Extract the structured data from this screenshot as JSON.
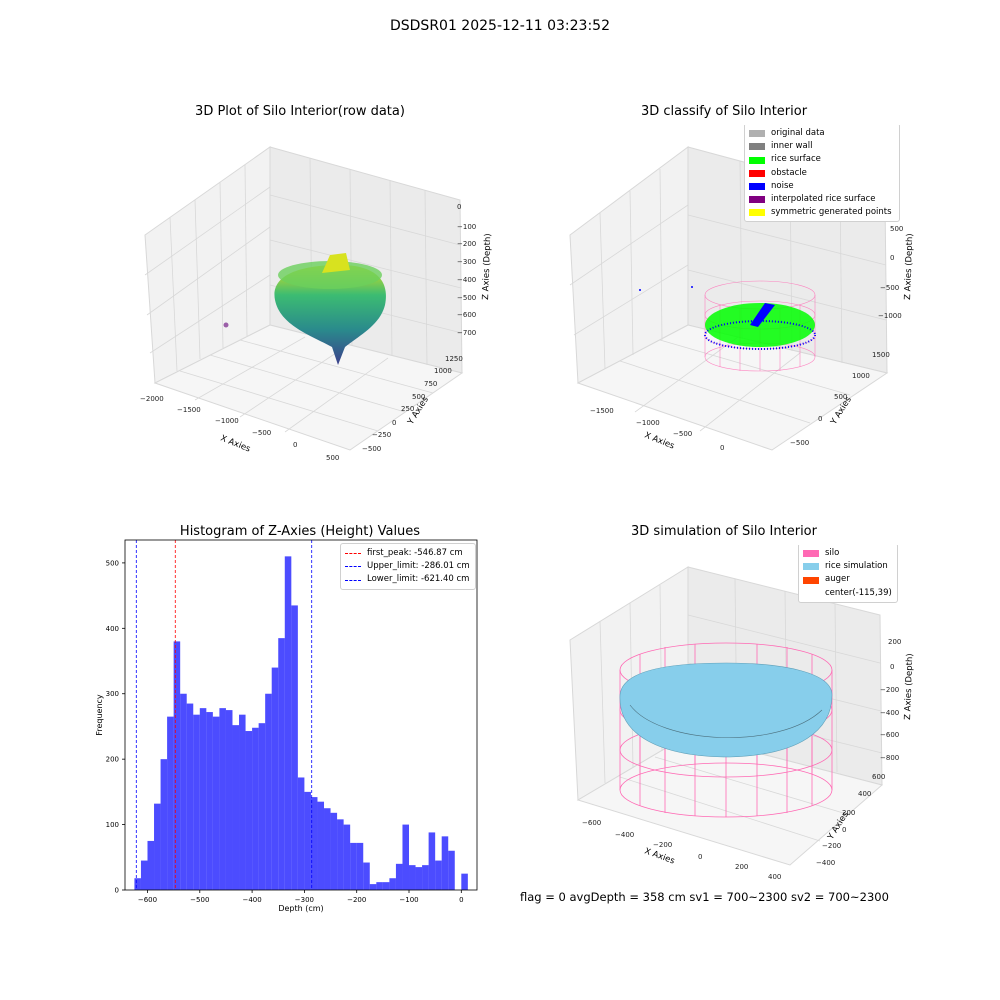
{
  "figure": {
    "suptitle": "DSDSR01 2025-12-11 03:23:52",
    "footer": "flag = 0     avgDepth = 358 cm  sv1 = 700~2300  sv2 = 700~2300"
  },
  "panels": {
    "raw": {
      "title": "3D Plot of Silo Interior(row data)",
      "xlabel": "X Axies",
      "ylabel": "Y Axies",
      "zlabel": "Z Axies (Depth)",
      "xticks": [
        "−2000",
        "−1500",
        "−1000",
        "−500",
        "0",
        "500"
      ],
      "yticks": [
        "−500",
        "−250",
        "0",
        "250",
        "500",
        "750",
        "1000",
        "1250"
      ],
      "zticks": [
        "0",
        "−100",
        "−200",
        "−300",
        "−400",
        "−500",
        "−600",
        "−700"
      ]
    },
    "classify": {
      "title": "3D classify of Silo Interior",
      "xlabel": "X Axies",
      "ylabel": "Y Axies",
      "zlabel": "Z Axies (Depth)",
      "xticks": [
        "−1500",
        "−1000",
        "−500",
        "0"
      ],
      "yticks": [
        "−500",
        "0",
        "500",
        "1000",
        "1500"
      ],
      "zticks": [
        "500",
        "0",
        "−500",
        "−1000"
      ],
      "legend": [
        {
          "label": "original data",
          "color": "#b0b0b0"
        },
        {
          "label": "inner wall",
          "color": "#808080"
        },
        {
          "label": "rice surface",
          "color": "#00ff00"
        },
        {
          "label": "obstacle",
          "color": "#ff0000"
        },
        {
          "label": "noise",
          "color": "#0000ff"
        },
        {
          "label": "interpolated rice surface",
          "color": "#800080"
        },
        {
          "label": "symmetric generated points",
          "color": "#ffff00"
        }
      ]
    },
    "simulation": {
      "title": "3D simulation of Silo Interior",
      "xlabel": "X Axies",
      "ylabel": "Y Axies",
      "zlabel": "Z Axies (Depth)",
      "xticks": [
        "−600",
        "−400",
        "−200",
        "0",
        "200",
        "400"
      ],
      "yticks": [
        "−400",
        "−200",
        "0",
        "200",
        "400",
        "600"
      ],
      "zticks": [
        "200",
        "0",
        "−200",
        "−400",
        "−600",
        "−800"
      ],
      "legend": [
        {
          "label": "silo",
          "color": "#ff69b4"
        },
        {
          "label": "rice simulation",
          "color": "#87ceeb"
        },
        {
          "label": "auger",
          "color": "#ff4500"
        },
        {
          "label": "center(-115,39)",
          "color": ""
        }
      ]
    }
  },
  "chart_data": [
    {
      "type": "bar",
      "title": "Histogram of Z-Axies (Height) Values",
      "xlabel": "Depth (cm)",
      "ylabel": "Frequency",
      "xlim": [
        -643,
        30
      ],
      "ylim": [
        0,
        535
      ],
      "bin_width": 12.5,
      "bin_starts": [
        -625,
        -612.5,
        -600,
        -587.5,
        -575,
        -562.5,
        -550,
        -537.5,
        -525,
        -512.5,
        -500,
        -487.5,
        -475,
        -462.5,
        -450,
        -437.5,
        -425,
        -412.5,
        -400,
        -387.5,
        -375,
        -362.5,
        -350,
        -337.5,
        -325,
        -312.5,
        -300,
        -287.5,
        -275,
        -262.5,
        -250,
        -237.5,
        -225,
        -212.5,
        -200,
        -187.5,
        -175,
        -162.5,
        -150,
        -137.5,
        -125,
        -112.5,
        -100,
        -87.5,
        -75,
        -62.5,
        -50,
        -37.5,
        -25,
        -12.5,
        0
      ],
      "values": [
        18,
        45,
        75,
        132,
        200,
        265,
        380,
        300,
        285,
        268,
        278,
        272,
        265,
        278,
        275,
        252,
        268,
        243,
        248,
        255,
        300,
        340,
        385,
        510,
        435,
        172,
        150,
        142,
        135,
        125,
        118,
        108,
        100,
        72,
        72,
        42,
        9,
        12,
        12,
        18,
        40,
        100,
        38,
        35,
        38,
        88,
        45,
        82,
        60,
        0,
        25
      ],
      "xticks": [
        -600,
        -500,
        -400,
        -300,
        -200,
        -100,
        0
      ],
      "xtick_labels": [
        "−600",
        "−500",
        "−400",
        "−300",
        "−200",
        "−100",
        "0"
      ],
      "yticks": [
        0,
        100,
        200,
        300,
        400,
        500
      ],
      "bar_color": "#0000ff",
      "lines": [
        {
          "label": "first_peak: -546.87 cm",
          "x": -546.87,
          "color": "#ff0000"
        },
        {
          "label": "Upper_limit: -286.01 cm",
          "x": -286.01,
          "color": "#0000ff"
        },
        {
          "label": "Lower_limit: -621.40 cm",
          "x": -621.4,
          "color": "#0000ff"
        }
      ]
    }
  ]
}
